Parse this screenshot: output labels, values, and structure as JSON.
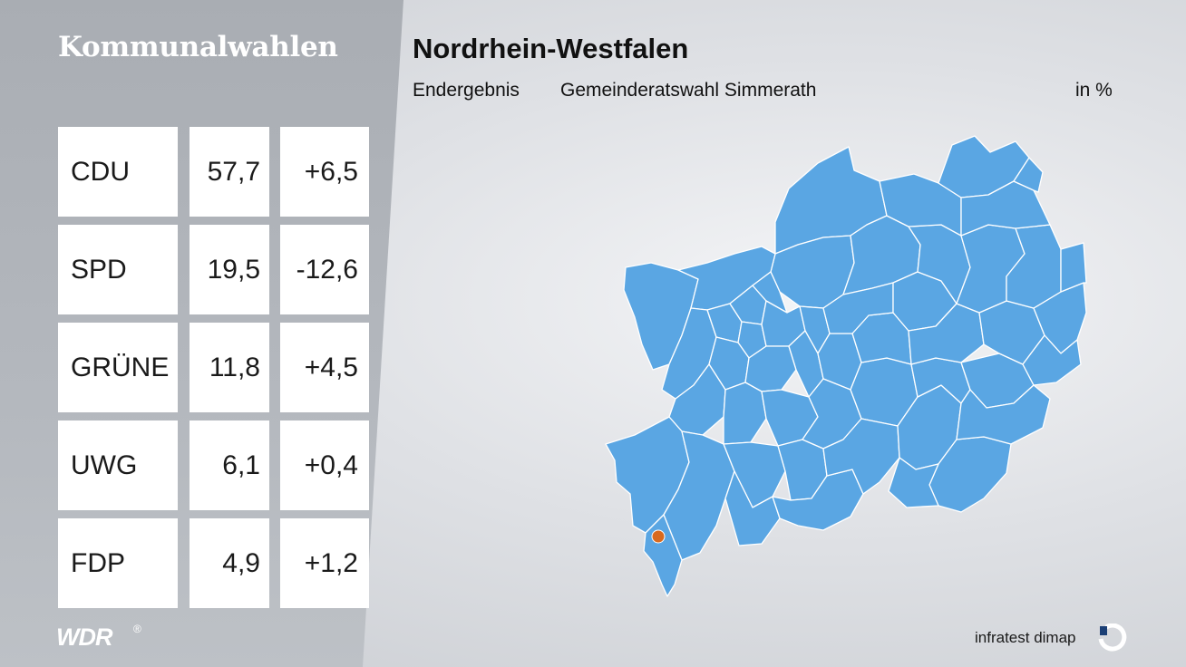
{
  "header": {
    "brand_title": "Kommunalwahlen",
    "title": "Nordrhein-Westfalen",
    "result_label": "Endergebnis",
    "election_label": "Gemeinderatswahl Simmerath",
    "unit_label": "in %"
  },
  "results": [
    {
      "party": "CDU",
      "share": "57,7",
      "change": "+6,5"
    },
    {
      "party": "SPD",
      "share": "19,5",
      "change": "-12,6"
    },
    {
      "party": "GRÜNE",
      "share": "11,8",
      "change": "+4,5"
    },
    {
      "party": "UWG",
      "share": "6,1",
      "change": "+0,4"
    },
    {
      "party": "FDP",
      "share": "4,9",
      "change": "+1,2"
    }
  ],
  "map": {
    "region_color": "#5aa6e3",
    "highlight_color": "#d86a1f",
    "highlighted_municipality": "Simmerath"
  },
  "footer": {
    "broadcaster_logo": "WDR",
    "registered_mark": "®",
    "pollster": "infratest dimap"
  }
}
